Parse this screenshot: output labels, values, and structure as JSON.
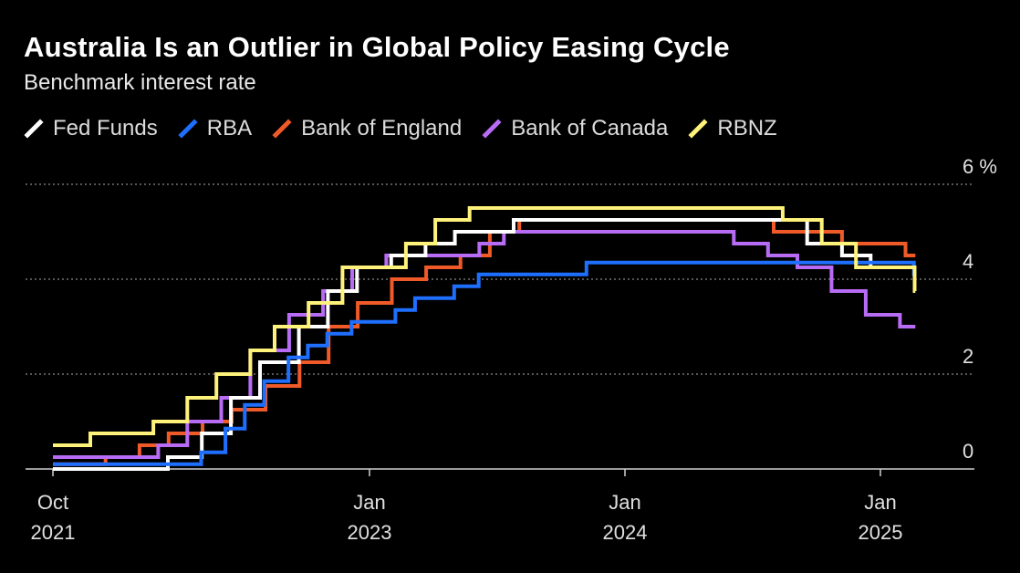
{
  "header": {
    "title": "Australia Is an Outlier in Global Policy Easing Cycle",
    "subtitle": "Benchmark interest rate"
  },
  "chart_data": {
    "type": "line",
    "step": true,
    "title": "Australia Is an Outlier in Global Policy Easing Cycle",
    "subtitle": "Benchmark interest rate",
    "xlabel": "",
    "ylabel": "%",
    "ylim": [
      0,
      6
    ],
    "xlim": [
      "2021-10-01",
      "2025-04-15"
    ],
    "grid": true,
    "legend_position": "top-left",
    "y_ticks": [
      {
        "value": 0,
        "label": "0"
      },
      {
        "value": 2,
        "label": "2"
      },
      {
        "value": 4,
        "label": "4"
      },
      {
        "value": 6,
        "label": "6 %"
      }
    ],
    "x_ticks": [
      {
        "date": "2021-10-01",
        "line1": "Oct",
        "line2": "2021"
      },
      {
        "date": "2023-01-01",
        "line1": "Jan",
        "line2": "2023"
      },
      {
        "date": "2024-01-01",
        "line1": "Jan",
        "line2": "2024"
      },
      {
        "date": "2025-01-01",
        "line1": "Jan",
        "line2": "2025"
      }
    ],
    "series": [
      {
        "name": "Bank of England",
        "color": "#f05a28",
        "points": [
          [
            "2021-10-01",
            0.1
          ],
          [
            "2021-12-16",
            0.25
          ],
          [
            "2022-02-03",
            0.5
          ],
          [
            "2022-03-17",
            0.75
          ],
          [
            "2022-05-05",
            1.0
          ],
          [
            "2022-06-16",
            1.25
          ],
          [
            "2022-08-04",
            1.75
          ],
          [
            "2022-09-22",
            2.25
          ],
          [
            "2022-11-03",
            3.0
          ],
          [
            "2022-12-15",
            3.5
          ],
          [
            "2023-02-02",
            4.0
          ],
          [
            "2023-03-23",
            4.25
          ],
          [
            "2023-05-11",
            4.5
          ],
          [
            "2023-06-22",
            5.0
          ],
          [
            "2023-08-03",
            5.25
          ],
          [
            "2024-08-01",
            5.0
          ],
          [
            "2024-11-07",
            4.75
          ],
          [
            "2025-02-06",
            4.5
          ],
          [
            "2025-02-20",
            4.5
          ]
        ]
      },
      {
        "name": "Bank of Canada",
        "color": "#b86cf5",
        "points": [
          [
            "2021-10-01",
            0.25
          ],
          [
            "2022-03-02",
            0.5
          ],
          [
            "2022-04-13",
            1.0
          ],
          [
            "2022-06-01",
            1.5
          ],
          [
            "2022-07-13",
            2.5
          ],
          [
            "2022-09-07",
            3.25
          ],
          [
            "2022-10-26",
            3.75
          ],
          [
            "2022-12-07",
            4.25
          ],
          [
            "2023-01-25",
            4.5
          ],
          [
            "2023-06-07",
            4.75
          ],
          [
            "2023-07-12",
            5.0
          ],
          [
            "2024-06-05",
            4.75
          ],
          [
            "2024-07-24",
            4.5
          ],
          [
            "2024-09-04",
            4.25
          ],
          [
            "2024-10-23",
            3.75
          ],
          [
            "2024-12-11",
            3.25
          ],
          [
            "2025-01-29",
            3.0
          ],
          [
            "2025-02-20",
            3.0
          ]
        ]
      },
      {
        "name": "Fed Funds",
        "color": "#ffffff",
        "points": [
          [
            "2021-10-01",
            0.0
          ],
          [
            "2022-03-16",
            0.25
          ],
          [
            "2022-05-04",
            0.75
          ],
          [
            "2022-06-15",
            1.5
          ],
          [
            "2022-07-27",
            2.25
          ],
          [
            "2022-09-21",
            3.0
          ],
          [
            "2022-11-02",
            3.75
          ],
          [
            "2022-12-14",
            4.25
          ],
          [
            "2023-02-01",
            4.5
          ],
          [
            "2023-03-22",
            4.75
          ],
          [
            "2023-05-03",
            5.0
          ],
          [
            "2023-07-26",
            5.25
          ],
          [
            "2024-09-18",
            4.75
          ],
          [
            "2024-11-07",
            4.5
          ],
          [
            "2024-12-18",
            4.25
          ],
          [
            "2025-02-20",
            4.25
          ]
        ]
      },
      {
        "name": "RBA",
        "color": "#1f6fff",
        "points": [
          [
            "2021-10-01",
            0.1
          ],
          [
            "2022-05-03",
            0.35
          ],
          [
            "2022-06-07",
            0.85
          ],
          [
            "2022-07-05",
            1.35
          ],
          [
            "2022-08-02",
            1.85
          ],
          [
            "2022-09-06",
            2.35
          ],
          [
            "2022-10-04",
            2.6
          ],
          [
            "2022-11-01",
            2.85
          ],
          [
            "2022-12-06",
            3.1
          ],
          [
            "2023-02-07",
            3.35
          ],
          [
            "2023-03-07",
            3.6
          ],
          [
            "2023-05-02",
            3.85
          ],
          [
            "2023-06-06",
            4.1
          ],
          [
            "2023-11-07",
            4.35
          ],
          [
            "2025-02-18",
            4.1
          ],
          [
            "2025-02-20",
            4.1
          ]
        ]
      },
      {
        "name": "RBNZ",
        "color": "#fff27a",
        "points": [
          [
            "2021-10-01",
            0.5
          ],
          [
            "2021-10-06",
            0.5
          ],
          [
            "2021-11-24",
            0.75
          ],
          [
            "2022-02-23",
            1.0
          ],
          [
            "2022-04-13",
            1.5
          ],
          [
            "2022-05-25",
            2.0
          ],
          [
            "2022-07-13",
            2.5
          ],
          [
            "2022-08-17",
            3.0
          ],
          [
            "2022-10-05",
            3.5
          ],
          [
            "2022-11-23",
            4.25
          ],
          [
            "2023-02-22",
            4.75
          ],
          [
            "2023-04-05",
            5.25
          ],
          [
            "2023-05-24",
            5.5
          ],
          [
            "2024-08-14",
            5.25
          ],
          [
            "2024-10-09",
            4.75
          ],
          [
            "2024-11-27",
            4.25
          ],
          [
            "2025-02-19",
            3.75
          ],
          [
            "2025-02-20",
            3.75
          ]
        ]
      }
    ]
  },
  "legend": [
    {
      "name": "Fed Funds",
      "color": "#ffffff"
    },
    {
      "name": "RBA",
      "color": "#1f6fff"
    },
    {
      "name": "Bank of England",
      "color": "#f05a28"
    },
    {
      "name": "Bank of Canada",
      "color": "#b86cf5"
    },
    {
      "name": "RBNZ",
      "color": "#fff27a"
    }
  ]
}
